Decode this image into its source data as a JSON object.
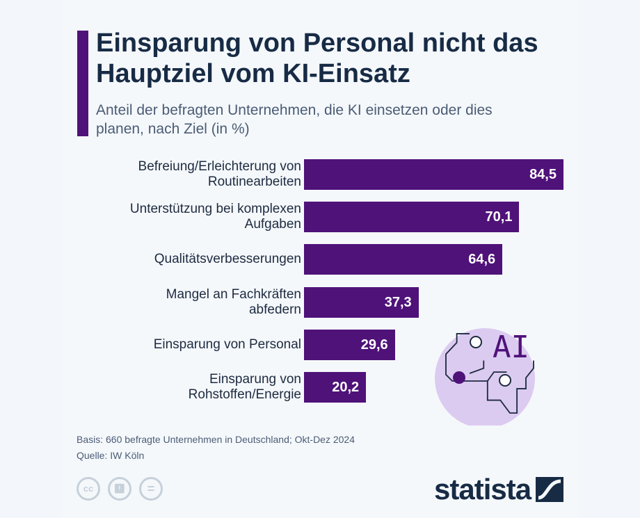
{
  "title": "Einsparung von Personal nicht das Hauptziel vom KI-Einsatz",
  "subtitle": "Anteil der befragten Unternehmen, die KI einsetzen oder dies planen, nach Ziel (in %)",
  "chart_data": {
    "type": "bar",
    "orientation": "horizontal",
    "categories": [
      "Befreiung/Erleichterung von Routinearbeiten",
      "Unterstützung bei komplexen Aufgaben",
      "Qualitätsverbesserungen",
      "Mangel an Fachkräften abfedern",
      "Einsparung von Personal",
      "Einsparung von Rohstoffen/Energie"
    ],
    "values": [
      84.5,
      70.1,
      64.6,
      37.3,
      29.6,
      20.2
    ],
    "value_labels": [
      "84,5",
      "70,1",
      "64,6",
      "37,3",
      "29,6",
      "20,2"
    ],
    "bar_color": "#4f1279",
    "grid": false
  },
  "illustration_text": "AI",
  "footer": {
    "basis": "Basis: 660 befragte Unternehmen in Deutschland; Okt-Dez 2024",
    "source": "Quelle: IW Köln"
  },
  "license_icons": [
    "cc-icon",
    "by-icon",
    "nd-icon"
  ],
  "logo": "statista"
}
